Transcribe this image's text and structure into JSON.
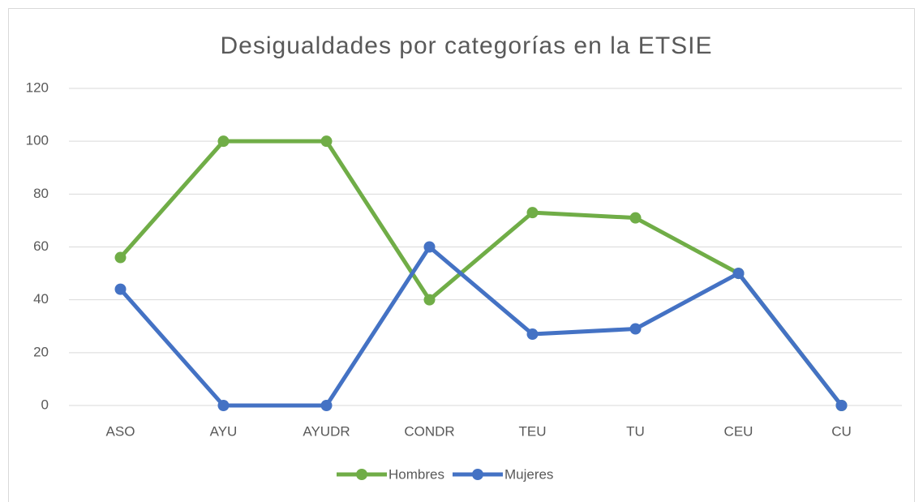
{
  "chart_data": {
    "type": "line",
    "title": "Desigualdades por categorías en la ETSIE",
    "categories": [
      "ASO",
      "AYU",
      "AYUDR",
      "CONDR",
      "TEU",
      "TU",
      "CEU",
      "CU"
    ],
    "series": [
      {
        "name": "Hombres",
        "color": "#70ad47",
        "values": [
          56,
          100,
          100,
          40,
          73,
          71,
          50,
          0
        ]
      },
      {
        "name": "Mujeres",
        "color": "#4472c4",
        "values": [
          44,
          0,
          0,
          60,
          27,
          29,
          50,
          0
        ]
      }
    ],
    "ylim": [
      0,
      120
    ],
    "yticks": [
      0,
      20,
      40,
      60,
      80,
      100,
      120
    ],
    "grid": true,
    "legend": "bottom"
  }
}
